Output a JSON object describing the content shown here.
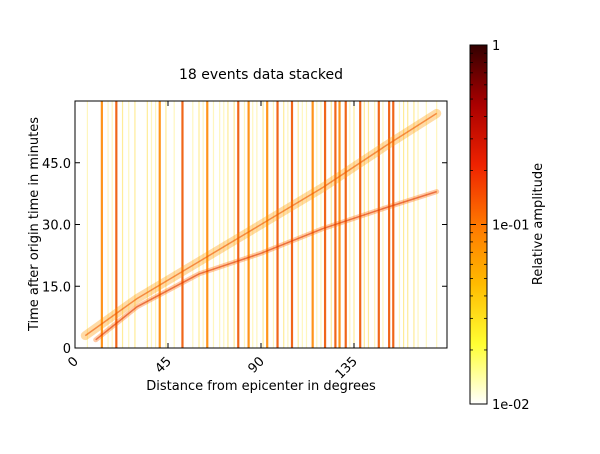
{
  "chart_data": {
    "type": "heatmap",
    "title": "18 events data stacked",
    "xlabel": "Distance from epicenter in degrees",
    "ylabel": "Time after origin time in minutes",
    "xlim": [
      0,
      180
    ],
    "ylim": [
      0,
      60
    ],
    "x_ticks": [
      {
        "value": 0,
        "label": "0"
      },
      {
        "value": 45,
        "label": "45"
      },
      {
        "value": 90,
        "label": "90"
      },
      {
        "value": 135,
        "label": "135"
      }
    ],
    "y_ticks": [
      {
        "value": 0,
        "label": "0"
      },
      {
        "value": 15,
        "label": "15.0"
      },
      {
        "value": 30,
        "label": "30.0"
      },
      {
        "value": 45,
        "label": "45.0"
      }
    ],
    "colorbar": {
      "label": "Relative amplitude",
      "scale": "log",
      "range": [
        0.01,
        1
      ],
      "tick_labels": [
        {
          "value": 1,
          "label": "1"
        },
        {
          "value": 0.1,
          "label": "1e-01"
        },
        {
          "value": 0.01,
          "label": "1e-02"
        }
      ],
      "colormap_stops": [
        "#ffffff",
        "#ffff33",
        "#ffbb00",
        "#ff7700",
        "#ee2200",
        "#aa0000",
        "#330000"
      ]
    },
    "stations_deg": [
      6,
      13,
      16,
      18,
      20,
      23,
      26,
      29,
      35,
      37,
      39,
      41,
      44,
      48,
      52,
      57,
      60,
      62,
      64,
      67,
      70,
      72,
      74,
      77,
      79,
      82,
      84,
      86,
      88,
      91,
      93,
      96,
      98,
      101,
      103,
      105,
      108,
      110,
      112,
      115,
      117,
      119,
      121,
      124,
      126,
      128,
      131,
      133,
      135,
      138,
      140,
      142,
      145,
      147,
      149,
      152,
      154,
      157,
      159,
      161,
      164,
      166,
      170,
      175
    ],
    "strong_traces_deg": [
      13,
      20,
      41,
      52,
      64,
      79,
      84,
      93,
      98,
      105,
      115,
      121,
      126,
      128,
      131,
      138,
      147,
      152,
      154
    ],
    "phase_arrivals": [
      {
        "name": "",
        "points": [
          [
            10,
            2
          ],
          [
            30,
            10
          ],
          [
            60,
            18
          ],
          [
            90,
            23
          ],
          [
            120,
            29
          ],
          [
            150,
            34
          ],
          [
            175,
            38
          ]
        ]
      },
      {
        "name": "",
        "points": [
          [
            5,
            3
          ],
          [
            30,
            12
          ],
          [
            60,
            21
          ],
          [
            90,
            30
          ],
          [
            120,
            39
          ],
          [
            150,
            49
          ],
          [
            175,
            57
          ]
        ]
      }
    ]
  }
}
